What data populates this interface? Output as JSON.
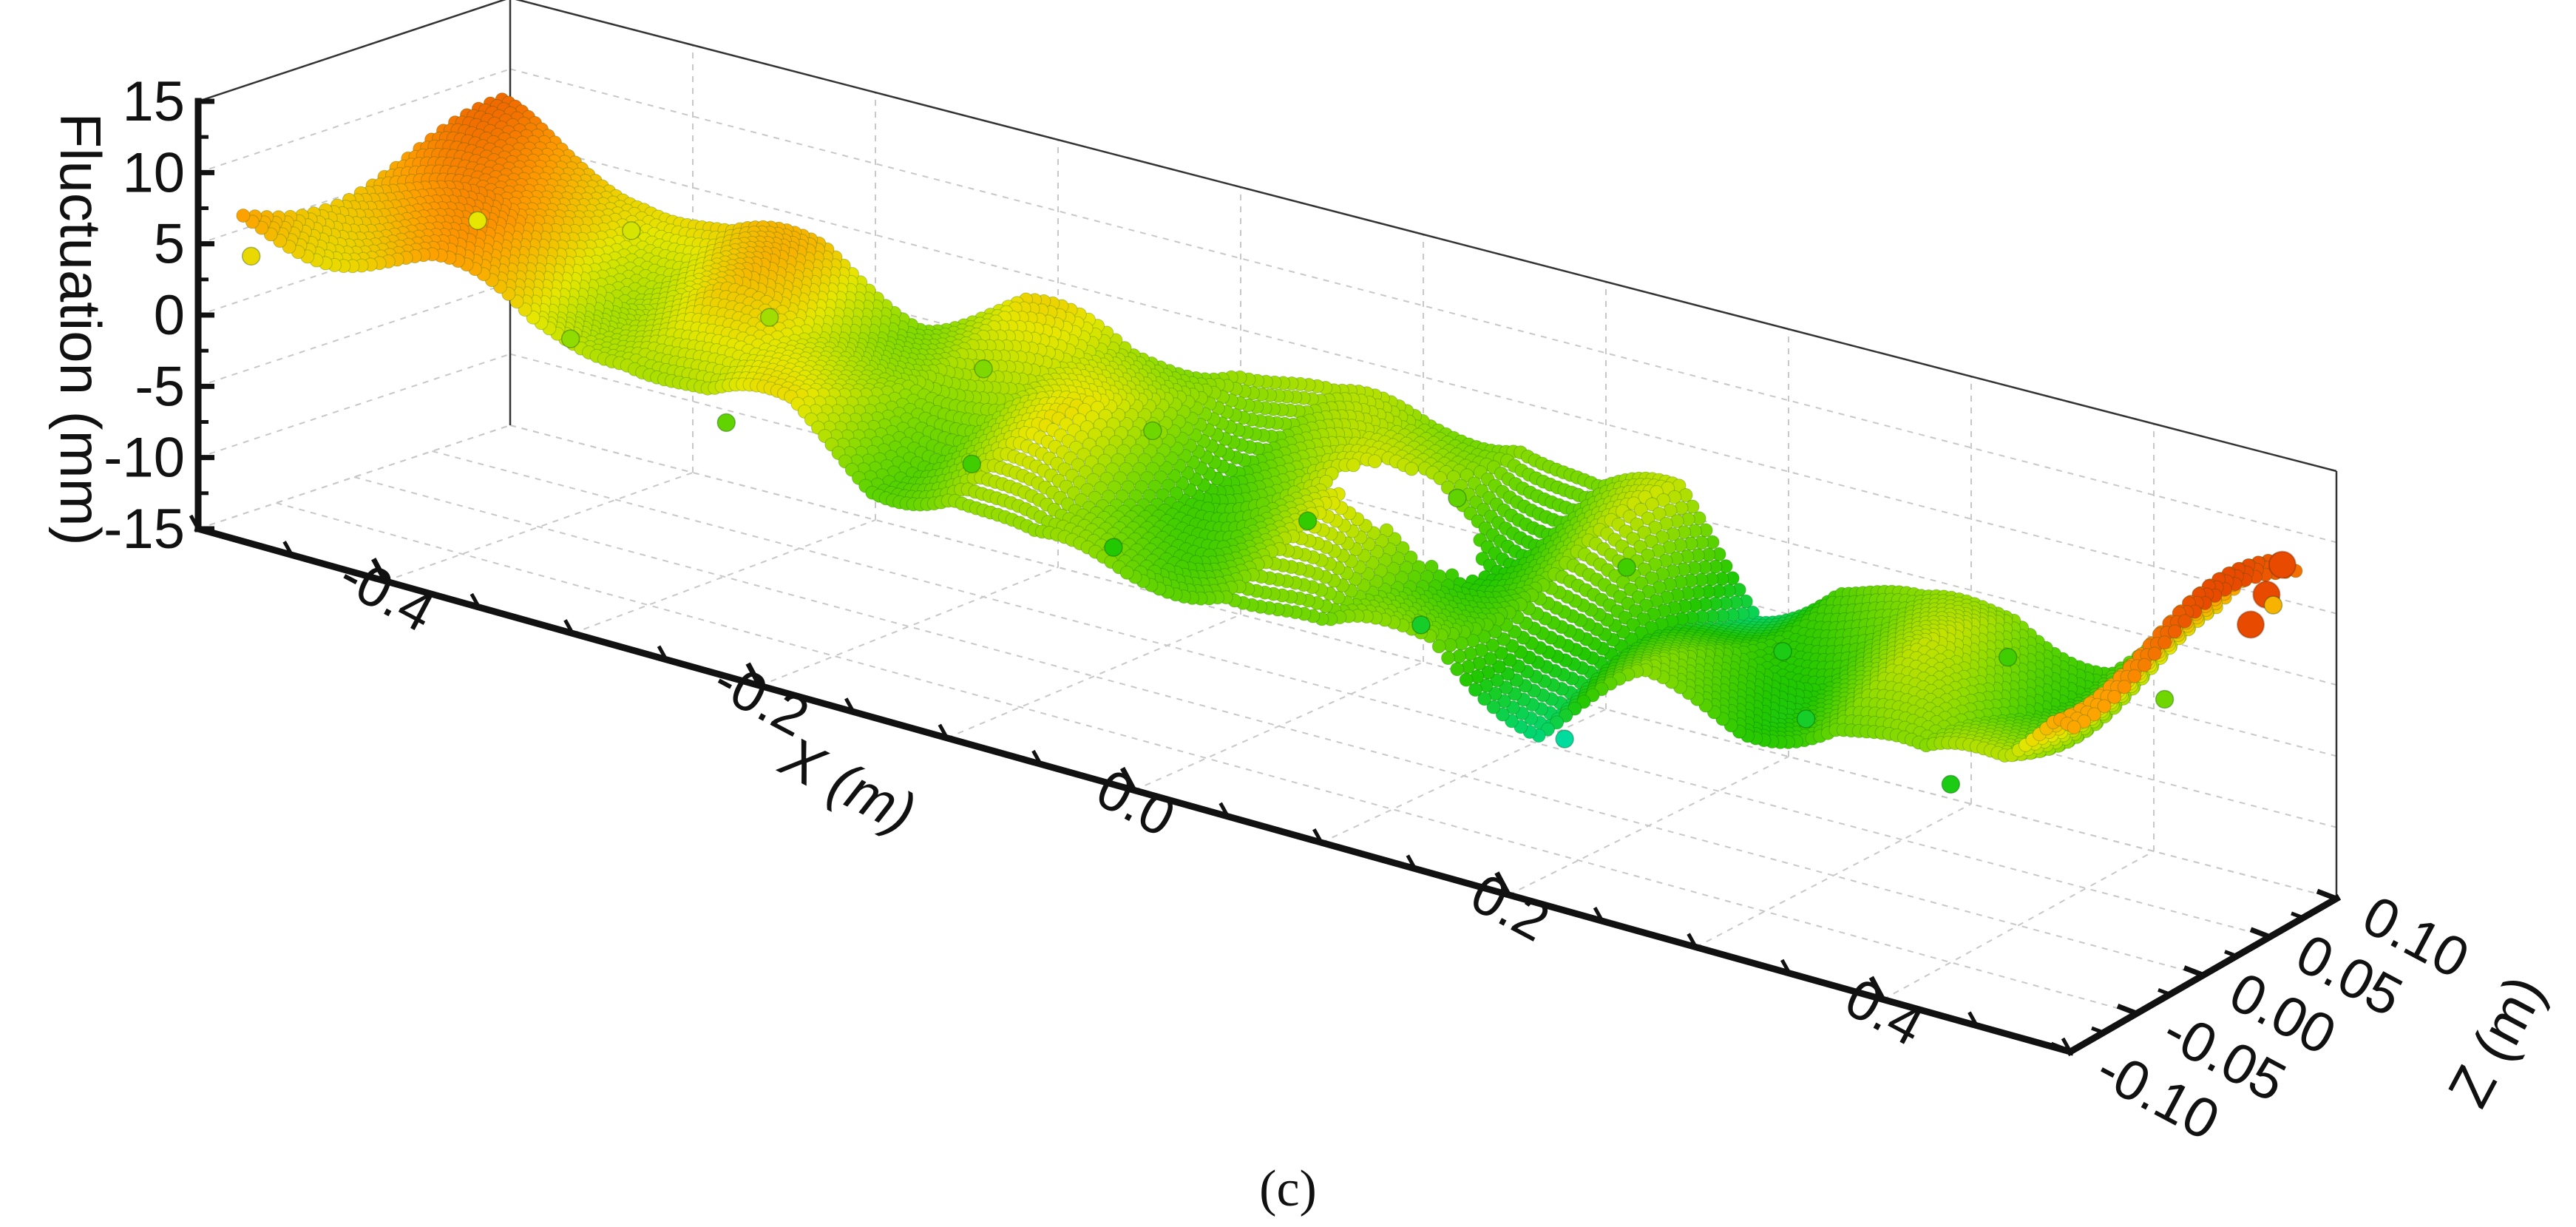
{
  "chart_data": {
    "type": "scatter",
    "title": "",
    "xlabel": "X (m)",
    "ylabel": "Fluctuation (mm)",
    "zlabel": "Z (m)",
    "x_ticks": [
      "-0.4",
      "-0.2",
      "0.0",
      "0.2",
      "0.4"
    ],
    "y_ticks": [
      "15",
      "10",
      "5",
      "0",
      "-5",
      "-10",
      "-15"
    ],
    "z_ticks": [
      "0.10",
      "0.05",
      "0.00",
      "-0.05",
      "-0.10"
    ],
    "xlim": [
      -0.5,
      0.5
    ],
    "ylim": [
      -15,
      15
    ],
    "zlim": [
      -0.1,
      0.1
    ],
    "grid": true,
    "colormap": [
      "#00e5e5",
      "#00d77a",
      "#22c800",
      "#7fd900",
      "#e6e600",
      "#ff9a00",
      "#e84a00"
    ],
    "points": [
      {
        "x": -0.48,
        "z": -0.09,
        "y": 4.5
      },
      {
        "x": -0.45,
        "z": 0.02,
        "y": 4.0
      },
      {
        "x": -0.4,
        "z": 0.06,
        "y": 3.5
      },
      {
        "x": -0.35,
        "z": -0.04,
        "y": 1.5
      },
      {
        "x": -0.3,
        "z": 0.03,
        "y": 2.0
      },
      {
        "x": -0.25,
        "z": -0.06,
        "y": 0.0
      },
      {
        "x": -0.2,
        "z": 0.05,
        "y": 1.0
      },
      {
        "x": -0.15,
        "z": -0.02,
        "y": -1.0
      },
      {
        "x": -0.1,
        "z": 0.04,
        "y": 0.5
      },
      {
        "x": -0.05,
        "z": -0.05,
        "y": -2.0
      },
      {
        "x": 0.0,
        "z": 0.02,
        "y": -1.5
      },
      {
        "x": 0.05,
        "z": 0.06,
        "y": 0.0
      },
      {
        "x": 0.1,
        "z": -0.03,
        "y": -3.0
      },
      {
        "x": 0.15,
        "z": 0.05,
        "y": -1.0
      },
      {
        "x": 0.2,
        "z": -0.06,
        "y": -6.0
      },
      {
        "x": 0.25,
        "z": 0.03,
        "y": -2.5
      },
      {
        "x": 0.3,
        "z": -0.02,
        "y": -3.0
      },
      {
        "x": 0.35,
        "z": 0.06,
        "y": -1.0
      },
      {
        "x": 0.4,
        "z": -0.05,
        "y": -2.5
      },
      {
        "x": 0.45,
        "z": 0.04,
        "y": 0.5
      },
      {
        "x": 0.48,
        "z": 0.08,
        "y": 6.0
      }
    ]
  },
  "caption": "(c)"
}
